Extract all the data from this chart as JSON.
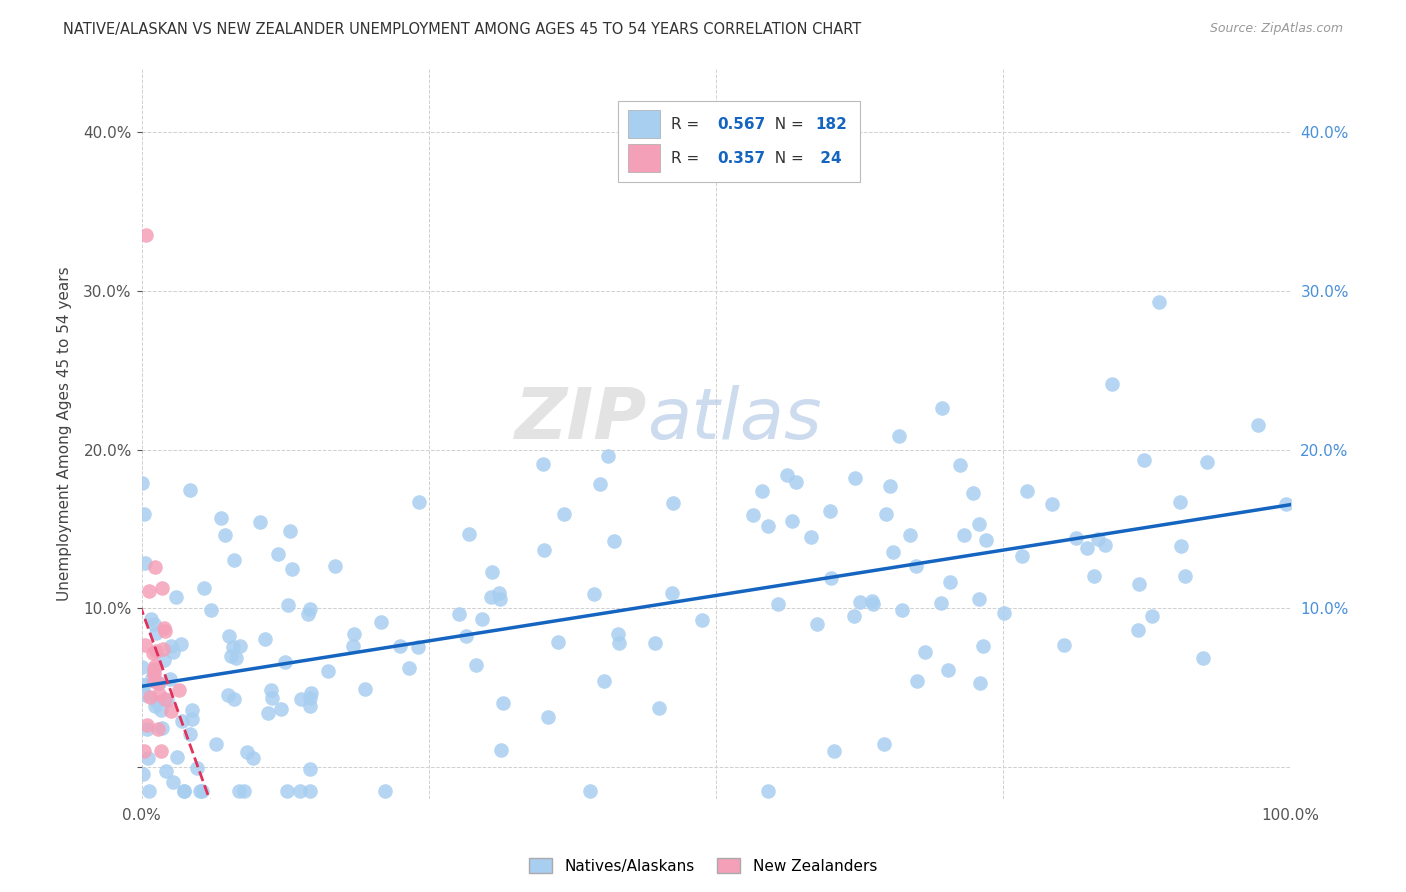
{
  "title": "NATIVE/ALASKAN VS NEW ZEALANDER UNEMPLOYMENT AMONG AGES 45 TO 54 YEARS CORRELATION CHART",
  "source": "Source: ZipAtlas.com",
  "ylabel": "Unemployment Among Ages 45 to 54 years",
  "xlim": [
    0,
    1.0
  ],
  "ylim": [
    -0.02,
    0.44
  ],
  "blue_R": 0.567,
  "blue_N": 182,
  "pink_R": 0.357,
  "pink_N": 24,
  "blue_color": "#a8cef0",
  "blue_line_color": "#1565c0",
  "pink_color": "#f4a0b8",
  "pink_line_color": "#e0325a",
  "watermark_zip": "ZIP",
  "watermark_atlas": "atlas",
  "grid_color": "#d0d0d0",
  "background_color": "#ffffff",
  "right_tick_color": "#4a90d9",
  "blue_seed": 42,
  "pink_seed": 99
}
